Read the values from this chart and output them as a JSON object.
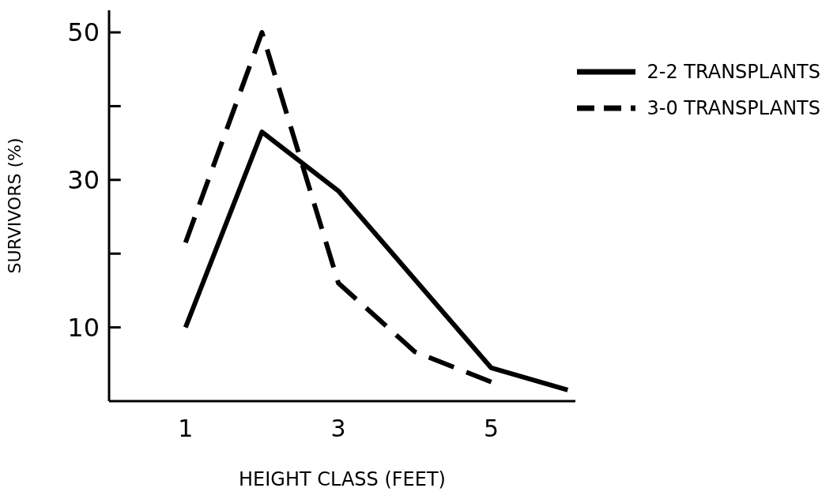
{
  "chart_data": {
    "type": "line",
    "xlabel": "HEIGHT CLASS (FEET)",
    "ylabel": "SURVIVORS (%)",
    "xlim": [
      0,
      6.1
    ],
    "xticks": [
      1,
      3,
      5
    ],
    "ylim": [
      0,
      53
    ],
    "yticks": [
      10,
      {
        "value": 20,
        "label": null
      },
      30,
      {
        "value": 40,
        "label": null
      },
      50
    ],
    "legend": "top right",
    "grid": false,
    "series": [
      {
        "name": "2-2 TRANSPLANTS",
        "color": "#000000",
        "line_style": "solid",
        "x": [
          1,
          2,
          3,
          5,
          6
        ],
        "values": [
          10,
          36.5,
          28.5,
          4.5,
          1.5
        ]
      },
      {
        "name": "3-0 TRANSPLANTS",
        "color": "#000000",
        "line_style": "dashed",
        "x": [
          1,
          2,
          3,
          4,
          5
        ],
        "values": [
          21.5,
          50,
          16,
          6.7,
          2.6
        ]
      }
    ]
  }
}
